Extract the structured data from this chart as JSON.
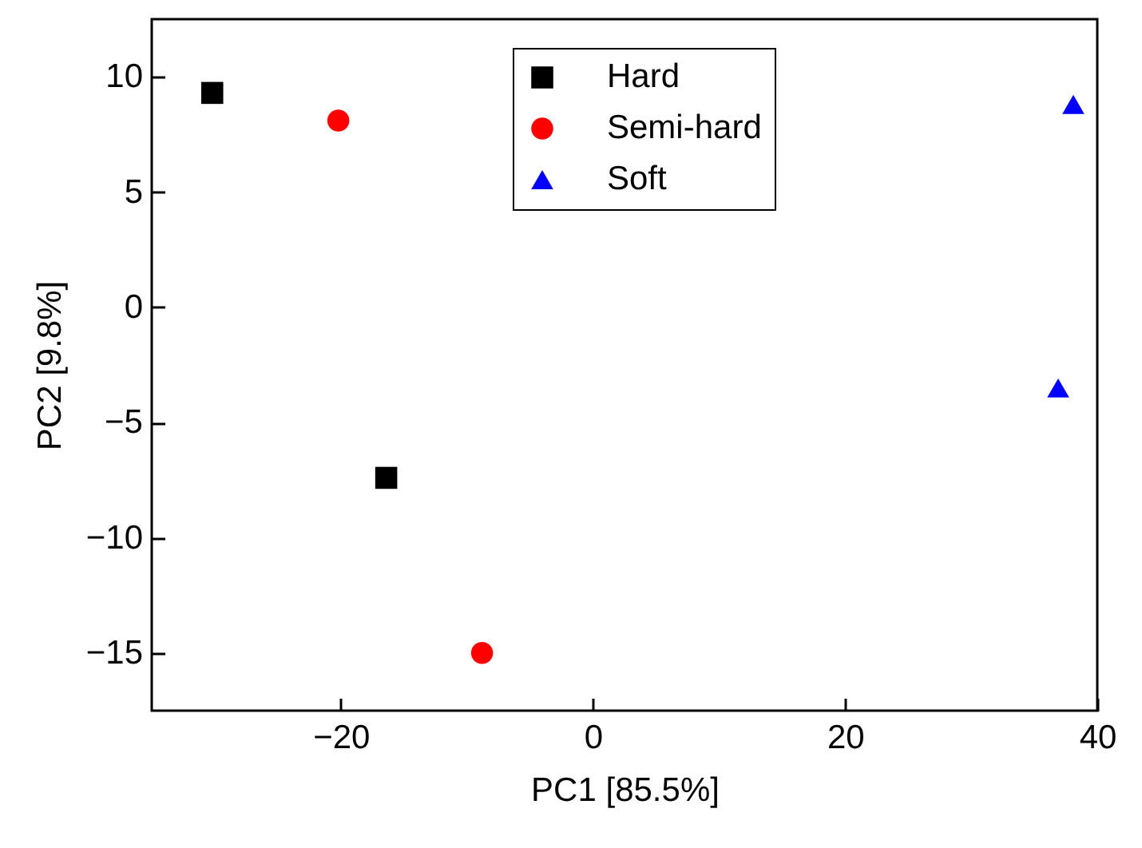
{
  "chart_data": {
    "type": "scatter",
    "xlabel": "PC1 [85.5%]",
    "ylabel": "PC2 [9.8%]",
    "xlim": [
      -35,
      40
    ],
    "xticks": [
      -20,
      0,
      20,
      40
    ],
    "ylim": [
      -17.5,
      12.5
    ],
    "yticks": [
      -15,
      -10,
      -5,
      0,
      5,
      10
    ],
    "grid": false,
    "legend": "top",
    "series": [
      {
        "name": "Hard",
        "color": "#000000",
        "marker": "square",
        "x": [
          -30.2,
          -16.4
        ],
        "values": [
          9.3,
          -7.4
        ]
      },
      {
        "name": "Semi-hard",
        "color": "#ff0000",
        "marker": "circle",
        "x": [
          -20.2,
          -8.8
        ],
        "values": [
          8.1,
          -15.0
        ]
      },
      {
        "name": "Soft",
        "color": "#0000ff",
        "marker": "triangle",
        "x": [
          38.1,
          36.9
        ],
        "values": [
          8.8,
          -3.5
        ]
      }
    ]
  }
}
